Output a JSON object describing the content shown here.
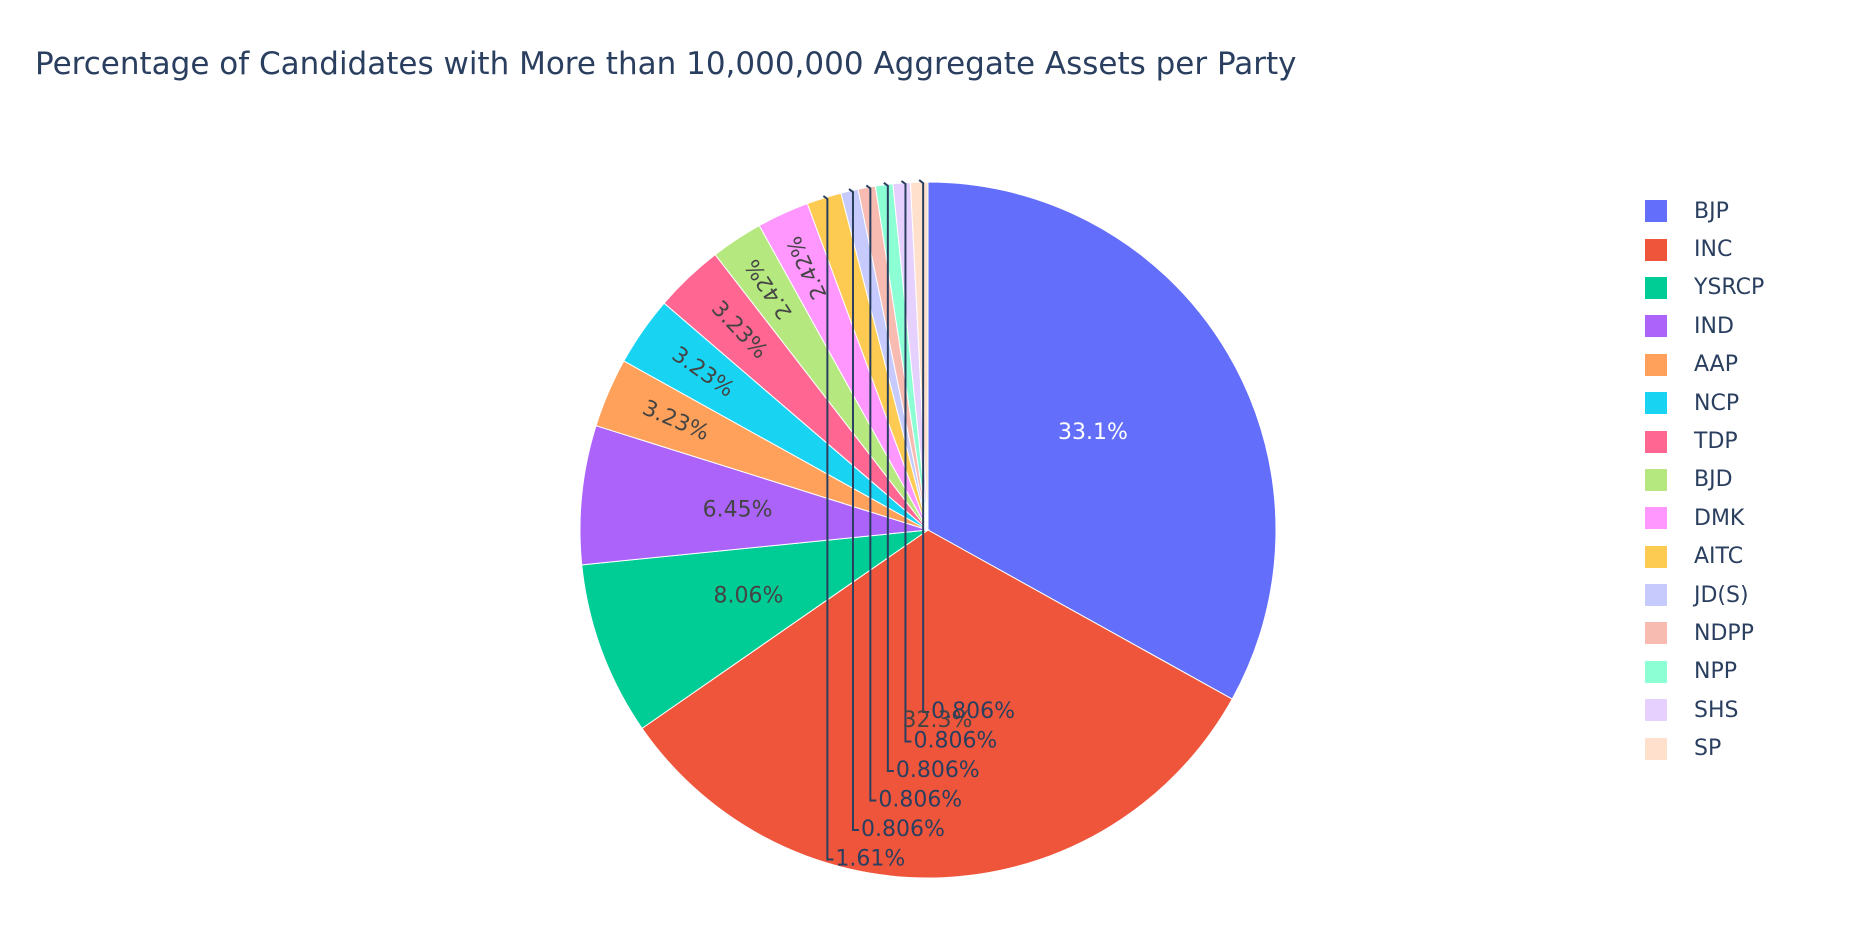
{
  "chart_data": {
    "type": "pie",
    "title": "Percentage of Candidates with More than 10,000,000 Aggregate Assets per Party",
    "legend_position": "right",
    "slices": [
      {
        "label": "BJP",
        "value": 33.1,
        "text": "33.1%",
        "color": "#636efa",
        "text_color": "#ffffff"
      },
      {
        "label": "INC",
        "value": 32.3,
        "text": "32.3%",
        "color": "#EF553B",
        "text_color": "#444444"
      },
      {
        "label": "YSRCP",
        "value": 8.06,
        "text": "8.06%",
        "color": "#00cc96",
        "text_color": "#444444"
      },
      {
        "label": "IND",
        "value": 6.45,
        "text": "6.45%",
        "color": "#ab63fa",
        "text_color": "#444444"
      },
      {
        "label": "AAP",
        "value": 3.23,
        "text": "3.23%",
        "color": "#FFA15A",
        "text_color": "#444444"
      },
      {
        "label": "NCP",
        "value": 3.23,
        "text": "3.23%",
        "color": "#19d3f3",
        "text_color": "#444444"
      },
      {
        "label": "TDP",
        "value": 3.23,
        "text": "3.23%",
        "color": "#FF6692",
        "text_color": "#444444"
      },
      {
        "label": "BJD",
        "value": 2.42,
        "text": "2.42%",
        "color": "#B6E880",
        "text_color": "#444444"
      },
      {
        "label": "DMK",
        "value": 2.42,
        "text": "2.42%",
        "color": "#FF97FF",
        "text_color": "#444444"
      },
      {
        "label": "AITC",
        "value": 1.61,
        "text": "1.61%",
        "color": "#FECB52",
        "text_color": "#2a3f5f"
      },
      {
        "label": "JD(S)",
        "value": 0.806,
        "text": "0.806%",
        "color": "#c6cafd",
        "text_color": "#2a3f5f"
      },
      {
        "label": "NDPP",
        "value": 0.806,
        "text": "0.806%",
        "color": "#f7bbb1",
        "text_color": "#2a3f5f"
      },
      {
        "label": "NPP",
        "value": 0.806,
        "text": "0.806%",
        "color": "#8cffd5",
        "text_color": "#2a3f5f"
      },
      {
        "label": "SHS",
        "value": 0.806,
        "text": "0.806%",
        "color": "#e6d0fd",
        "text_color": "#2a3f5f"
      },
      {
        "label": "SP",
        "value": 0.806,
        "text": "0.806%",
        "color": "#ffe0cd",
        "text_color": "#2a3f5f"
      }
    ]
  }
}
